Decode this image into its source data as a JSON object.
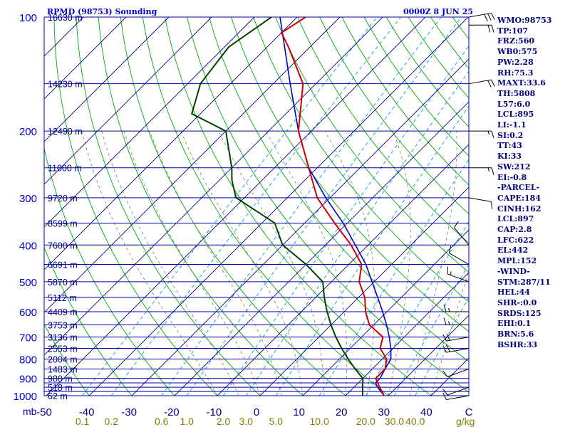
{
  "header": {
    "station": "RPMD (98753) Sounding",
    "time": "0000Z  8 JUN 25"
  },
  "stats": [
    "WMO:98753",
    "TP:107",
    "FRZ:560",
    "WB0:575",
    "PW:2.28",
    "RH:75.3",
    "MAXT:33.6",
    "TH:5808",
    "L57:6.0",
    "LCL:895",
    "LI:-1.1",
    "SI:0.2",
    "TT:43",
    "KI:33",
    "SW:212",
    "EI:-0.8",
    "-PARCEL-",
    "CAPE:184",
    "CINH:162",
    "LCL:897",
    "CAP:2.8",
    "LFC:622",
    "EL:442",
    "MPL:152",
    "-WIND-",
    "STM:287/11",
    "HEL:44",
    "SHR-:0.0",
    "SRDS:125",
    "EHI:0.1",
    "BRN:5.6",
    "BSHR:33"
  ],
  "colors": {
    "isobar": "#0000aa",
    "isotherm": "#000080",
    "dry_adiabat": "#00aa00",
    "mixing_ratio": "#00a0c0",
    "moist_adiabat": "#808060",
    "temperature": "#cc0000",
    "dewpoint": "#004400",
    "parcel": "#0000cc",
    "pressure_label": "#0000cc",
    "height_label": "#000080",
    "temp_label": "#000080",
    "mr_label": "#808000"
  },
  "chart_data": {
    "type": "line",
    "xlabel": "",
    "ylabel": "mb",
    "xlim": [
      -50,
      50
    ],
    "ylim": [
      1000,
      100
    ],
    "pressure_ticks": [
      100,
      200,
      300,
      400,
      500,
      600,
      700,
      800,
      900,
      1000
    ],
    "pressure_levels": [
      100,
      150,
      200,
      250,
      300,
      350,
      400,
      450,
      500,
      550,
      600,
      650,
      700,
      750,
      800,
      850,
      900,
      925,
      950,
      975,
      1000
    ],
    "height_labels": [
      {
        "p": 100,
        "label": "16630 m"
      },
      {
        "p": 150,
        "label": "14230 m"
      },
      {
        "p": 200,
        "label": "12490 m"
      },
      {
        "p": 250,
        "label": "11000 m"
      },
      {
        "p": 300,
        "label": "9720 m"
      },
      {
        "p": 350,
        "label": "8599 m"
      },
      {
        "p": 400,
        "label": "7600 m"
      },
      {
        "p": 450,
        "label": "6691 m"
      },
      {
        "p": 500,
        "label": "5870 m"
      },
      {
        "p": 550,
        "label": "5112 m"
      },
      {
        "p": 600,
        "label": "4409 m"
      },
      {
        "p": 650,
        "label": "3753 m"
      },
      {
        "p": 700,
        "label": "3136 m"
      },
      {
        "p": 750,
        "label": "2553 m"
      },
      {
        "p": 800,
        "label": "2004 m"
      },
      {
        "p": 850,
        "label": "1483 m"
      },
      {
        "p": 900,
        "label": "988 m"
      },
      {
        "p": 950,
        "label": "518 m"
      },
      {
        "p": 1000,
        "label": "62 m"
      }
    ],
    "temp_ticks": [
      -50,
      -40,
      -30,
      -20,
      -10,
      0,
      10,
      20,
      30,
      40,
      50
    ],
    "temp_tick_labels": [
      "-50",
      "-40",
      "-30",
      "-20",
      "-10",
      "0",
      "10",
      "20",
      "30",
      "40",
      "C"
    ],
    "mixing_ratio_labels": [
      "0.1",
      "0.2",
      "0.6",
      "1.0",
      "2.0",
      "3.0",
      "5.0",
      "10.0",
      "20.0",
      "30.0",
      "40.0"
    ],
    "mixing_ratio_values": [
      0.1,
      0.2,
      0.6,
      1.0,
      2.0,
      3.0,
      5.0,
      10.0,
      20.0,
      30.0,
      40.0
    ],
    "mixing_ratio_unit": "g/kg",
    "legend": "none",
    "series": [
      {
        "role": "temperature",
        "points": [
          [
            100,
            -78
          ],
          [
            110,
            -80
          ],
          [
            120,
            -75
          ],
          [
            150,
            -63
          ],
          [
            200,
            -53
          ],
          [
            250,
            -42
          ],
          [
            300,
            -33
          ],
          [
            350,
            -23
          ],
          [
            400,
            -14
          ],
          [
            450,
            -7
          ],
          [
            500,
            -3.5
          ],
          [
            550,
            1.5
          ],
          [
            600,
            5
          ],
          [
            650,
            9
          ],
          [
            700,
            15
          ],
          [
            750,
            17
          ],
          [
            800,
            21
          ],
          [
            850,
            23
          ],
          [
            900,
            23
          ],
          [
            950,
            26
          ],
          [
            1000,
            29
          ]
        ]
      },
      {
        "role": "dewpoint",
        "points": [
          [
            100,
            -86
          ],
          [
            120,
            -89
          ],
          [
            150,
            -87
          ],
          [
            180,
            -82
          ],
          [
            200,
            -70
          ],
          [
            250,
            -60
          ],
          [
            270,
            -57
          ],
          [
            300,
            -52
          ],
          [
            350,
            -37
          ],
          [
            400,
            -30
          ],
          [
            450,
            -20
          ],
          [
            500,
            -12
          ],
          [
            550,
            -8
          ],
          [
            600,
            -4
          ],
          [
            650,
            0
          ],
          [
            700,
            4
          ],
          [
            750,
            8
          ],
          [
            800,
            12
          ],
          [
            850,
            16
          ],
          [
            900,
            20
          ],
          [
            950,
            22
          ],
          [
            1000,
            24
          ]
        ]
      },
      {
        "role": "parcel",
        "points": [
          [
            100,
            -84
          ],
          [
            150,
            -66
          ],
          [
            200,
            -53
          ],
          [
            250,
            -42
          ],
          [
            300,
            -31
          ],
          [
            350,
            -21
          ],
          [
            400,
            -13
          ],
          [
            450,
            -6
          ],
          [
            500,
            -0.5
          ],
          [
            550,
            4.5
          ],
          [
            600,
            9
          ],
          [
            650,
            13
          ],
          [
            700,
            16.5
          ],
          [
            750,
            19.5
          ],
          [
            800,
            22
          ],
          [
            850,
            23
          ],
          [
            900,
            24
          ],
          [
            925,
            24
          ],
          [
            950,
            25.5
          ],
          [
            1000,
            29
          ]
        ]
      }
    ],
    "winds": [
      {
        "p": 100,
        "dir": 80,
        "spd": 30
      },
      {
        "p": 105,
        "dir": 90,
        "spd": 20
      },
      {
        "p": 150,
        "dir": 80,
        "spd": 20
      },
      {
        "p": 200,
        "dir": 90,
        "spd": 15
      },
      {
        "p": 250,
        "dir": 90,
        "spd": 15
      },
      {
        "p": 300,
        "dir": 100,
        "spd": 10
      },
      {
        "p": 400,
        "dir": 320,
        "spd": 10
      },
      {
        "p": 450,
        "dir": 300,
        "spd": 10
      },
      {
        "p": 500,
        "dir": 290,
        "spd": 15
      },
      {
        "p": 600,
        "dir": 270,
        "spd": 15
      },
      {
        "p": 650,
        "dir": 270,
        "spd": 15
      },
      {
        "p": 700,
        "dir": 260,
        "spd": 20
      },
      {
        "p": 750,
        "dir": 260,
        "spd": 20
      },
      {
        "p": 850,
        "dir": 250,
        "spd": 10
      },
      {
        "p": 950,
        "dir": 250,
        "spd": 10
      },
      {
        "p": 1000,
        "dir": 260,
        "spd": 10
      }
    ]
  }
}
